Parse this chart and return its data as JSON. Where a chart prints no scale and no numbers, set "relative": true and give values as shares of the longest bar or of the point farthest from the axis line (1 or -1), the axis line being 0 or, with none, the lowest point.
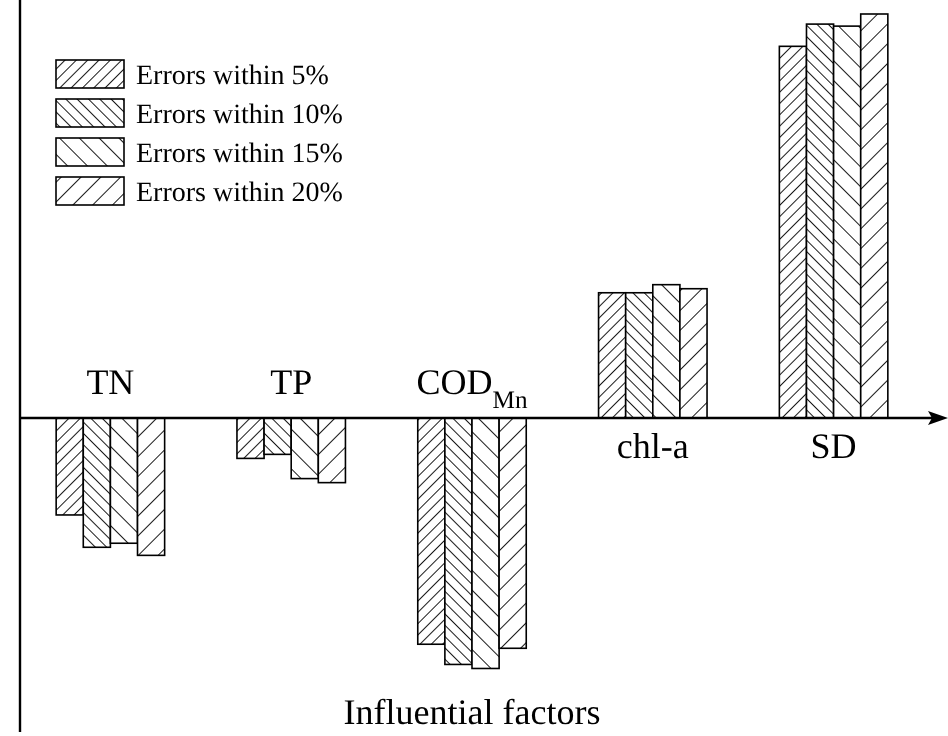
{
  "chart_data": {
    "type": "bar",
    "relative": true,
    "xlabel": "Influential factors",
    "categories": [
      "TN",
      "TP",
      "COD$_{Mn}$",
      "chl-a",
      "SD"
    ],
    "legend": "top left",
    "series": [
      {
        "name": "Errors within 5%",
        "color": "#000000",
        "values": [
          -0.24,
          -0.1,
          -0.56,
          0.31,
          0.92
        ]
      },
      {
        "name": "Errors within 10%",
        "color": "#000000",
        "values": [
          -0.32,
          -0.09,
          -0.61,
          0.31,
          0.975
        ]
      },
      {
        "name": "Errors within 15%",
        "color": "#000000",
        "values": [
          -0.31,
          -0.15,
          -0.62,
          0.33,
          0.97
        ]
      },
      {
        "name": "Errors within 20%",
        "color": "#000000",
        "values": [
          -0.34,
          -0.16,
          -0.57,
          0.32,
          1
        ]
      }
    ]
  }
}
